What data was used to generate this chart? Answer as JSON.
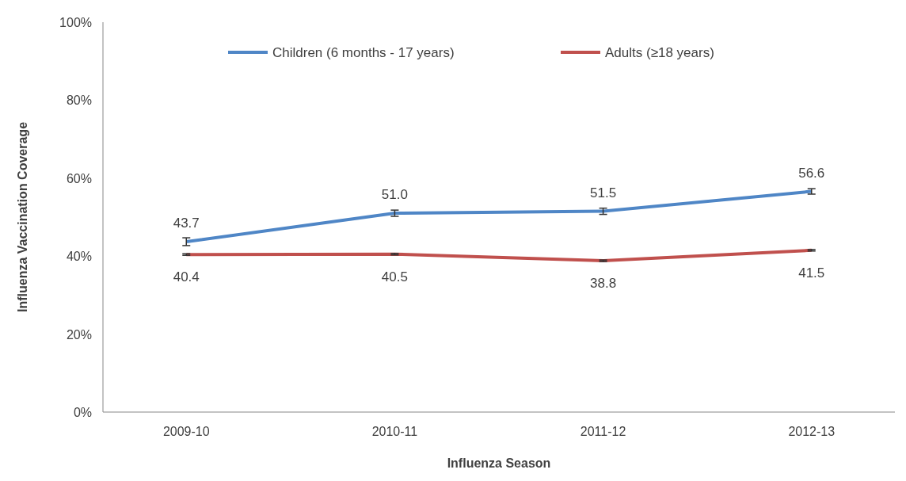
{
  "chart_data": {
    "type": "line",
    "xlabel": "Influenza Season",
    "ylabel": "Influenza Vaccination Coverage",
    "categories": [
      "2009-10",
      "2010-11",
      "2011-12",
      "2012-13"
    ],
    "series": [
      {
        "name": "Children (6 months - 17 years)",
        "color": "#4f86c6",
        "values": [
          43.7,
          51.0,
          51.5,
          56.6
        ],
        "value_labels": [
          "43.7",
          "51.0",
          "51.5",
          "56.6"
        ],
        "errors": [
          1.0,
          0.8,
          0.8,
          0.7
        ]
      },
      {
        "name": "Adults (≥18 years)",
        "color": "#c0504d",
        "values": [
          40.4,
          40.5,
          38.8,
          41.5
        ],
        "value_labels": [
          "40.4",
          "40.5",
          "38.8",
          "41.5"
        ],
        "errors": [
          0.2,
          0.2,
          0.2,
          0.2
        ]
      }
    ],
    "ylim": [
      0,
      100
    ],
    "yticks": [
      {
        "value": 0,
        "label": "0%"
      },
      {
        "value": 20,
        "label": "20%"
      },
      {
        "value": 40,
        "label": "40%"
      },
      {
        "value": 60,
        "label": "60%"
      },
      {
        "value": 80,
        "label": "80%"
      },
      {
        "value": 100,
        "label": "100%"
      }
    ],
    "legend": "top",
    "grid": false,
    "marker": "none",
    "line_style": "solid"
  }
}
